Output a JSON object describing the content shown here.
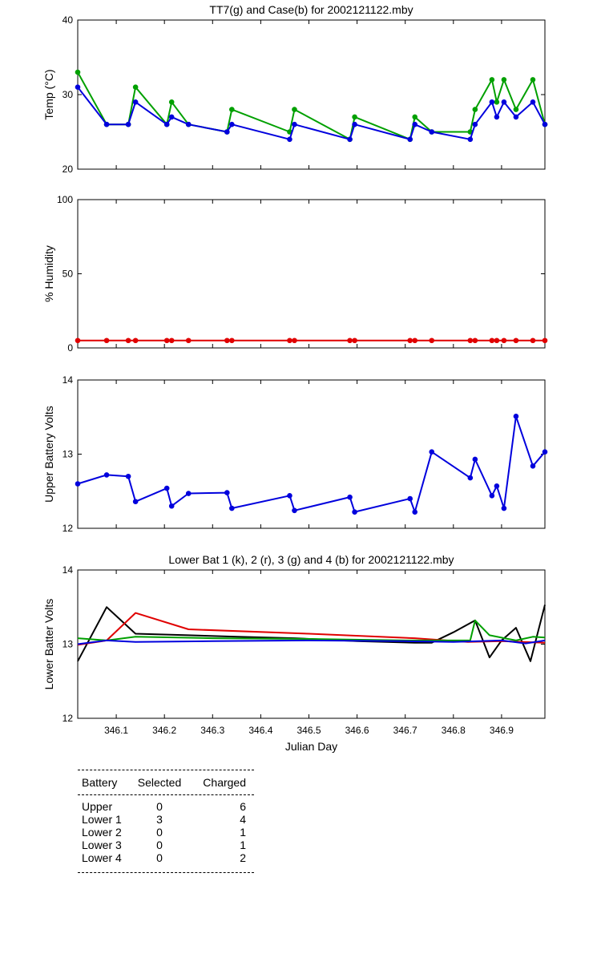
{
  "colors": {
    "green": "#00a000",
    "blue": "#0000dd",
    "red": "#e00000",
    "black": "#000000"
  },
  "chart_data": [
    {
      "type": "line",
      "title": "TT7(g) and Case(b) for 2002121122.mby",
      "xlabel": "",
      "ylabel": "Temp  (°C)",
      "xlim": [
        346.02,
        346.99
      ],
      "ylim": [
        20,
        40
      ],
      "yticks": [
        20,
        30,
        40
      ],
      "series": [
        {
          "name": "TT7",
          "color": "green",
          "x": [
            346.02,
            346.08,
            346.125,
            346.14,
            346.205,
            346.215,
            346.25,
            346.33,
            346.34,
            346.46,
            346.47,
            346.585,
            346.595,
            346.71,
            346.72,
            346.755,
            346.835,
            346.845,
            346.88,
            346.89,
            346.905,
            346.93,
            346.965,
            346.99
          ],
          "y": [
            33,
            26,
            26,
            31,
            26,
            29,
            26,
            25,
            28,
            25,
            28,
            24,
            27,
            24,
            27,
            25,
            25,
            28,
            32,
            29,
            32,
            28,
            32,
            26
          ]
        },
        {
          "name": "Case",
          "color": "blue",
          "x": [
            346.02,
            346.08,
            346.125,
            346.14,
            346.205,
            346.215,
            346.25,
            346.33,
            346.34,
            346.46,
            346.47,
            346.585,
            346.595,
            346.71,
            346.72,
            346.755,
            346.835,
            346.845,
            346.88,
            346.89,
            346.905,
            346.93,
            346.965,
            346.99
          ],
          "y": [
            31,
            26,
            26,
            29,
            26,
            27,
            26,
            25,
            26,
            24,
            26,
            24,
            26,
            24,
            26,
            25,
            24,
            26,
            29,
            27,
            29,
            27,
            29,
            26
          ]
        }
      ]
    },
    {
      "type": "line",
      "title": "",
      "xlabel": "",
      "ylabel": "% Humidity",
      "xlim": [
        346.02,
        346.99
      ],
      "ylim": [
        0,
        100
      ],
      "yticks": [
        0,
        50,
        100
      ],
      "series": [
        {
          "name": "Humidity",
          "color": "red",
          "x": [
            346.02,
            346.08,
            346.125,
            346.14,
            346.205,
            346.215,
            346.25,
            346.33,
            346.34,
            346.46,
            346.47,
            346.585,
            346.595,
            346.71,
            346.72,
            346.755,
            346.835,
            346.845,
            346.88,
            346.89,
            346.905,
            346.93,
            346.965,
            346.99
          ],
          "y": [
            5,
            5,
            5,
            5,
            5,
            5,
            5,
            5,
            5,
            5,
            5,
            5,
            5,
            5,
            5,
            5,
            5,
            5,
            5,
            5,
            5,
            5,
            5,
            5
          ]
        }
      ]
    },
    {
      "type": "line",
      "title": "",
      "xlabel": "",
      "ylabel": "Upper Battery Volts",
      "xlim": [
        346.02,
        346.99
      ],
      "ylim": [
        12,
        14
      ],
      "yticks": [
        12,
        13,
        14
      ],
      "series": [
        {
          "name": "Upper",
          "color": "blue",
          "x": [
            346.02,
            346.08,
            346.125,
            346.14,
            346.205,
            346.215,
            346.25,
            346.33,
            346.34,
            346.46,
            346.47,
            346.585,
            346.595,
            346.71,
            346.72,
            346.755,
            346.835,
            346.845,
            346.88,
            346.89,
            346.905,
            346.93,
            346.965,
            346.99
          ],
          "y": [
            12.6,
            12.72,
            12.7,
            12.36,
            12.54,
            12.3,
            12.47,
            12.48,
            12.27,
            12.44,
            12.24,
            12.42,
            12.22,
            12.4,
            12.22,
            13.03,
            12.68,
            12.93,
            12.44,
            12.57,
            12.27,
            13.51,
            12.84,
            13.03
          ]
        }
      ]
    },
    {
      "type": "line",
      "title": "Lower Bat 1 (k), 2 (r), 3 (g) and 4 (b) for 2002121122.mby",
      "xlabel": "Julian Day",
      "ylabel": "Lower Batter Volts",
      "xlim": [
        346.02,
        346.99
      ],
      "ylim": [
        12,
        14
      ],
      "yticks": [
        12,
        13,
        14
      ],
      "xticks": [
        346.1,
        346.2,
        346.3,
        346.4,
        346.5,
        346.6,
        346.7,
        346.8,
        346.9
      ],
      "series": [
        {
          "name": "Lower 1",
          "color": "black",
          "x": [
            346.02,
            346.08,
            346.14,
            346.25,
            346.35,
            346.47,
            346.6,
            346.72,
            346.755,
            346.8,
            346.845,
            346.875,
            346.9,
            346.93,
            346.96,
            346.99
          ],
          "y": [
            12.77,
            13.5,
            13.14,
            13.12,
            13.1,
            13.08,
            13.04,
            13.02,
            13.02,
            13.16,
            13.32,
            12.82,
            13.05,
            13.22,
            12.77,
            13.53
          ]
        },
        {
          "name": "Lower 2",
          "color": "red",
          "x": [
            346.02,
            346.08,
            346.14,
            346.25,
            346.5,
            346.72,
            346.83,
            346.9,
            346.99
          ],
          "y": [
            12.99,
            13.05,
            13.42,
            13.2,
            13.14,
            13.08,
            13.03,
            13.04,
            13.02
          ]
        },
        {
          "name": "Lower 3",
          "color": "green",
          "x": [
            346.02,
            346.08,
            346.14,
            346.3,
            346.5,
            346.7,
            346.835,
            346.845,
            346.875,
            346.93,
            346.965,
            346.99
          ],
          "y": [
            13.08,
            13.05,
            13.1,
            13.08,
            13.07,
            13.05,
            13.05,
            13.32,
            13.12,
            13.05,
            13.1,
            13.09
          ]
        },
        {
          "name": "Lower 4",
          "color": "blue",
          "x": [
            346.02,
            346.08,
            346.14,
            346.3,
            346.5,
            346.7,
            346.8,
            346.9,
            346.95,
            346.99
          ],
          "y": [
            13.0,
            13.05,
            13.03,
            13.04,
            13.05,
            13.04,
            13.03,
            13.05,
            13.01,
            13.05
          ]
        }
      ]
    }
  ],
  "battery_table": {
    "headers": [
      "Battery",
      "Selected",
      "Charged"
    ],
    "rows": [
      [
        "Upper",
        "0",
        "6"
      ],
      [
        "Lower 1",
        "3",
        "4"
      ],
      [
        "Lower 2",
        "0",
        "1"
      ],
      [
        "Lower 3",
        "0",
        "1"
      ],
      [
        "Lower 4",
        "0",
        "2"
      ]
    ]
  }
}
